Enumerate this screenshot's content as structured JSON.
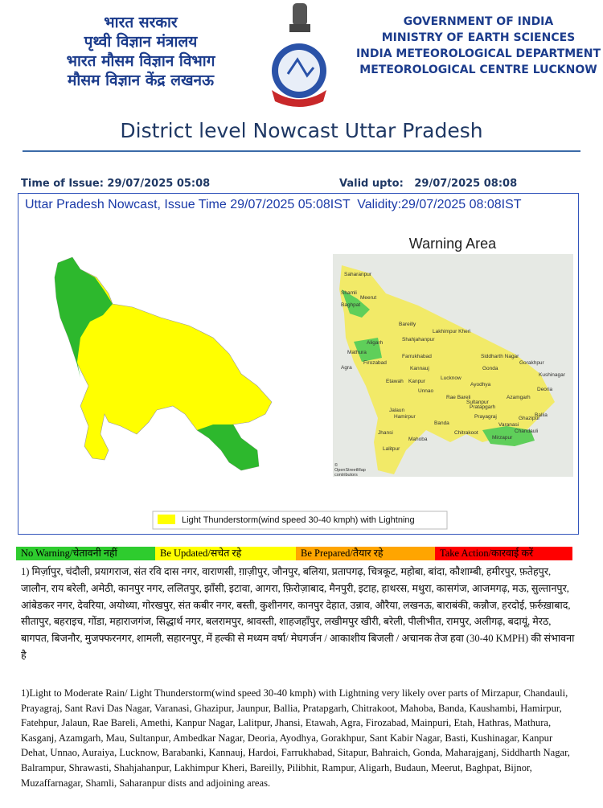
{
  "header": {
    "hindi_lines": [
      "भारत सरकार",
      "पृथ्वी विज्ञान मंत्रालय",
      "भारत मौसम विज्ञान विभाग",
      "मौसम विज्ञान केंद्र लखनऊ"
    ],
    "english_lines": [
      "GOVERNMENT OF INDIA",
      "MINISTRY OF EARTH SCIENCES",
      "INDIA METEOROLOGICAL DEPARTMENT",
      "METEOROLOGICAL CENTRE LUCKNOW"
    ],
    "title": "District level Nowcast Uttar Pradesh"
  },
  "issue": {
    "time_of_issue": "Time of Issue: 29/07/2025 05:08",
    "valid_upto": "Valid upto:   29/07/2025 08:08"
  },
  "map_panel": {
    "title": "Uttar Pradesh Nowcast, Issue Time 29/07/2025 05:08IST  Validity:29/07/2025 08:08IST",
    "warning_area": "Warning Area",
    "legend": "Light Thunderstorm(wind speed 30-40 kmph) with Lightning",
    "map_labels": [
      "Saharanpur",
      "Shamli",
      "Baghpat",
      "Meerut",
      "Bareilly",
      "Lakhimpur Kheri",
      "Shahjahanpur",
      "Aligarh",
      "Mathura",
      "Agra",
      "Firozabad",
      "Etawah",
      "Farrukhabad",
      "Kannauj",
      "Lucknow",
      "Gonda",
      "Gorakhpur",
      "Kushinagar",
      "Deoria",
      "Ayodhya",
      "Sultanpur",
      "Azamgarh",
      "Ballia",
      "Varanasi",
      "Ghazipur",
      "Prayagraj",
      "Mirzapur",
      "Chandauli",
      "Jhansi",
      "Jalaun",
      "Hamirpur",
      "Mahoba",
      "Banda",
      "Chitrakoot",
      "Lalitpur",
      "Rae Bareli",
      "Unnao",
      "Kanpur",
      "Siddharth Nagar",
      "Pratapgarh",
      "©",
      "OpenStreetMap",
      "contributors"
    ]
  },
  "warning_key": [
    "No Warning/चेतावनी नहीं",
    "Be Updated/सचेत रहे",
    "Be Prepared/तैयार रहे",
    "Take Action/कारवाई करें"
  ],
  "hindi_forecast": "1) मिर्ज़ापुर, चंदौली, प्रयागराज, संत रवि दास नगर, वाराणसी, ग़ाज़ीपुर, जौनपुर, बलिया, प्रतापगढ़, चित्रकूट, महोबा, बांदा, कौशाम्बी, हमीरपुर, फ़तेहपुर, जालौन, राय बरेली, अमेठी, कानपुर नगर, ललितपुर, झाँसी, इटावा, आगरा, फ़िरोज़ाबाद, मैनपुरी, इटाह, हाथरस, मथुरा, कासगंज, आजमगढ़, मऊ, सुल्तानपुर, आंबेडकर नगर, देवरिया, अयोध्या, गोरखपुर, संत कबीर नगर, बस्ती, कुशीनगर, कानपुर देहात, उन्नाव, औरैया, लखनऊ, बाराबंकी, कन्नौज, हरदोई, फ़र्रुख़ाबाद, सीतापुर, बहराइच, गोंडा, महाराजगंज, सिद्धार्थ नगर, बलरामपुर, श्रावस्ती, शाहजहाँपुर, लखीमपुर खीरी, बरेली, पीलीभीत, रामपुर, अलीगढ़, बदायूं, मेरठ, बागपत, बिजनौर, मुजफ्फरनगर, शामली, सहारनपुर,  में हल्की से मध्यम वर्षा/  मेघगर्जन / आकाशीय बिजली / अचानक तेज हवा (30-40 KMPH) की संभावना  है",
  "english_forecast": "1)Light to Moderate Rain/  Light Thunderstorm(wind speed 30-40 kmph) with Lightning  very likely over parts of Mirzapur, Chandauli, Prayagraj, Sant Ravi Das Nagar, Varanasi, Ghazipur, Jaunpur, Ballia, Pratapgarh, Chitrakoot, Mahoba, Banda, Kaushambi, Hamirpur, Fatehpur, Jalaun, Rae Bareli, Amethi, Kanpur Nagar, Lalitpur, Jhansi, Etawah, Agra, Firozabad, Mainpuri, Etah, Hathras, Mathura, Kasganj, Azamgarh, Mau, Sultanpur, Ambedkar Nagar, Deoria, Ayodhya, Gorakhpur, Sant Kabir Nagar, Basti, Kushinagar, Kanpur Dehat, Unnao, Auraiya, Lucknow, Barabanki, Kannauj, Hardoi, Farrukhabad, Sitapur, Bahraich, Gonda, Maharajganj, Siddharth Nagar, Balrampur, Shrawasti, Shahjahanpur, Lakhimpur Kheri, Bareilly, Pilibhit, Rampur, Aligarh, Budaun, Meerut, Baghpat, Bijnor, Muzaffarnagar, Shamli, Saharanpur dists and adjoining areas."
}
